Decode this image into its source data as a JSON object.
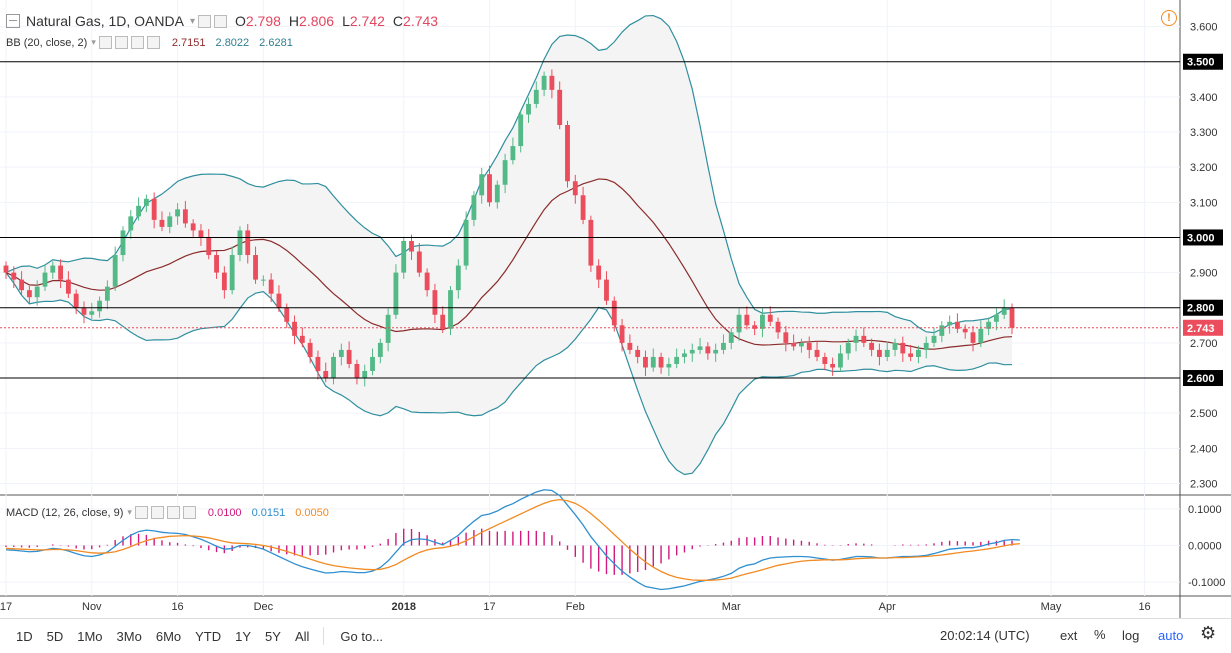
{
  "header": {
    "symbol": "Natural Gas, 1D, OANDA",
    "open_label": "O",
    "open": "2.798",
    "high_label": "H",
    "high": "2.806",
    "low_label": "L",
    "low": "2.742",
    "close_label": "C",
    "close": "2.743"
  },
  "bollinger": {
    "label": "BB (20, close, 2)",
    "basis": "2.7151",
    "upper": "2.8022",
    "lower": "2.6281"
  },
  "macd": {
    "label": "MACD (12, 26, close, 9)",
    "histogram": "0.0100",
    "macd": "0.0151",
    "signal": "0.0050"
  },
  "colors": {
    "up": "#53b987",
    "down": "#eb4d5c",
    "bb_line": "#2f8f9f",
    "bb_fill": "#f4f4f4",
    "basis": "#8b2b2b",
    "macd_line": "#2f8fd0",
    "signal_line": "#f28a22",
    "hist": "#d1197e"
  },
  "price_axis": {
    "ticks": [
      "3.600",
      "3.400",
      "3.300",
      "3.200",
      "3.100",
      "2.900",
      "2.700",
      "2.500",
      "2.400",
      "2.300"
    ],
    "tick_values": [
      3.6,
      3.4,
      3.3,
      3.2,
      3.1,
      2.9,
      2.7,
      2.5,
      2.4,
      2.3
    ],
    "highlighted": [
      "3.500",
      "3.000",
      "2.800",
      "2.600"
    ],
    "highlighted_values": [
      3.5,
      3.0,
      2.8,
      2.6
    ],
    "last_price": "2.743",
    "last_price_value": 2.743
  },
  "macd_axis": {
    "ticks": [
      "0.1000",
      "0.0000",
      "-0.1000"
    ],
    "tick_values": [
      0.1,
      0.0,
      -0.1
    ]
  },
  "time_axis": {
    "labels": [
      "17",
      "Nov",
      "16",
      "Dec",
      "2018",
      "17",
      "Feb",
      "Mar",
      "Apr",
      "May",
      "16"
    ],
    "label_bars": [
      0,
      11,
      22,
      33,
      51,
      62,
      73,
      93,
      113,
      134,
      146
    ]
  },
  "bottom_bar": {
    "timeframes": [
      "1D",
      "5D",
      "1Mo",
      "3Mo",
      "6Mo",
      "YTD",
      "1Y",
      "5Y",
      "All"
    ],
    "goto": "Go to...",
    "clock": "20:02:14 (UTC)",
    "ext": "ext",
    "pct": "%",
    "log": "log",
    "auto": "auto"
  },
  "chart_data": {
    "type": "candlestick",
    "title": "Natural Gas, 1D, OANDA",
    "ylim": [
      2.27,
      3.67
    ],
    "horizontal_lines": [
      3.5,
      3.0,
      2.8,
      2.6
    ],
    "closes": [
      2.9,
      2.88,
      2.85,
      2.83,
      2.86,
      2.9,
      2.92,
      2.88,
      2.84,
      2.8,
      2.78,
      2.79,
      2.82,
      2.86,
      2.95,
      3.02,
      3.06,
      3.09,
      3.11,
      3.05,
      3.03,
      3.06,
      3.08,
      3.04,
      3.02,
      3.0,
      2.95,
      2.9,
      2.85,
      2.95,
      3.02,
      2.95,
      2.88,
      2.88,
      2.84,
      2.8,
      2.76,
      2.72,
      2.7,
      2.66,
      2.62,
      2.6,
      2.66,
      2.68,
      2.64,
      2.6,
      2.62,
      2.66,
      2.7,
      2.78,
      2.9,
      2.99,
      2.96,
      2.9,
      2.85,
      2.78,
      2.74,
      2.85,
      2.92,
      3.05,
      3.12,
      3.18,
      3.1,
      3.15,
      3.22,
      3.26,
      3.35,
      3.38,
      3.42,
      3.46,
      3.42,
      3.32,
      3.16,
      3.12,
      3.05,
      2.92,
      2.88,
      2.82,
      2.75,
      2.7,
      2.68,
      2.66,
      2.63,
      2.66,
      2.63,
      2.64,
      2.66,
      2.67,
      2.68,
      2.69,
      2.67,
      2.68,
      2.7,
      2.73,
      2.78,
      2.75,
      2.74,
      2.78,
      2.76,
      2.73,
      2.7,
      2.69,
      2.7,
      2.68,
      2.66,
      2.64,
      2.63,
      2.67,
      2.7,
      2.72,
      2.7,
      2.68,
      2.66,
      2.68,
      2.7,
      2.67,
      2.66,
      2.68,
      2.7,
      2.72,
      2.75,
      2.76,
      2.74,
      2.73,
      2.7,
      2.74,
      2.76,
      2.78,
      2.8,
      2.743
    ],
    "macd": [
      -0.012,
      -0.013,
      -0.015,
      -0.017,
      -0.016,
      -0.012,
      -0.008,
      -0.01,
      -0.015,
      -0.022,
      -0.028,
      -0.03,
      -0.026,
      -0.018,
      -0.002,
      0.014,
      0.028,
      0.038,
      0.042,
      0.04,
      0.036,
      0.034,
      0.033,
      0.03,
      0.024,
      0.017,
      0.008,
      -0.002,
      -0.01,
      -0.008,
      0.0,
      0.0,
      -0.004,
      -0.01,
      -0.02,
      -0.03,
      -0.04,
      -0.05,
      -0.058,
      -0.064,
      -0.07,
      -0.075,
      -0.074,
      -0.071,
      -0.072,
      -0.074,
      -0.074,
      -0.07,
      -0.06,
      -0.042,
      -0.018,
      0.006,
      0.016,
      0.018,
      0.016,
      0.009,
      0.002,
      0.014,
      0.028,
      0.048,
      0.066,
      0.082,
      0.086,
      0.094,
      0.106,
      0.114,
      0.126,
      0.136,
      0.146,
      0.152,
      0.15,
      0.136,
      0.11,
      0.084,
      0.056,
      0.024,
      -0.002,
      -0.028,
      -0.05,
      -0.07,
      -0.086,
      -0.1,
      -0.112,
      -0.116,
      -0.12,
      -0.118,
      -0.114,
      -0.11,
      -0.104,
      -0.098,
      -0.094,
      -0.09,
      -0.084,
      -0.076,
      -0.062,
      -0.054,
      -0.05,
      -0.04,
      -0.034,
      -0.032,
      -0.031,
      -0.03,
      -0.03,
      -0.031,
      -0.034,
      -0.037,
      -0.04,
      -0.038,
      -0.034,
      -0.03,
      -0.03,
      -0.031,
      -0.034,
      -0.034,
      -0.032,
      -0.03,
      -0.03,
      -0.029,
      -0.027,
      -0.022,
      -0.016,
      -0.01,
      -0.008,
      -0.006,
      -0.006,
      -0.002,
      0.004,
      0.008,
      0.014,
      0.016,
      0.0151
    ],
    "signal": [
      -0.008,
      -0.009,
      -0.01,
      -0.011,
      -0.012,
      -0.012,
      -0.011,
      -0.011,
      -0.012,
      -0.014,
      -0.017,
      -0.02,
      -0.021,
      -0.02,
      -0.017,
      -0.011,
      -0.003,
      0.006,
      0.013,
      0.019,
      0.022,
      0.025,
      0.026,
      0.027,
      0.026,
      0.024,
      0.021,
      0.016,
      0.011,
      0.007,
      0.006,
      0.005,
      0.003,
      0.0,
      -0.004,
      -0.01,
      -0.016,
      -0.023,
      -0.03,
      -0.037,
      -0.044,
      -0.05,
      -0.055,
      -0.058,
      -0.061,
      -0.063,
      -0.065,
      -0.066,
      -0.065,
      -0.06,
      -0.052,
      -0.04,
      -0.029,
      -0.019,
      -0.012,
      -0.008,
      -0.006,
      -0.002,
      0.004,
      0.013,
      0.024,
      0.036,
      0.046,
      0.056,
      0.066,
      0.076,
      0.086,
      0.096,
      0.106,
      0.115,
      0.122,
      0.125,
      0.122,
      0.115,
      0.103,
      0.087,
      0.069,
      0.05,
      0.03,
      0.01,
      -0.01,
      -0.028,
      -0.045,
      -0.059,
      -0.071,
      -0.08,
      -0.087,
      -0.091,
      -0.094,
      -0.095,
      -0.095,
      -0.094,
      -0.092,
      -0.089,
      -0.083,
      -0.077,
      -0.072,
      -0.066,
      -0.06,
      -0.054,
      -0.05,
      -0.046,
      -0.043,
      -0.041,
      -0.04,
      -0.039,
      -0.039,
      -0.039,
      -0.038,
      -0.036,
      -0.035,
      -0.034,
      -0.034,
      -0.034,
      -0.033,
      -0.033,
      -0.032,
      -0.031,
      -0.03,
      -0.028,
      -0.026,
      -0.023,
      -0.02,
      -0.017,
      -0.015,
      -0.012,
      -0.009,
      -0.005,
      -0.001,
      0.003,
      0.005
    ]
  }
}
